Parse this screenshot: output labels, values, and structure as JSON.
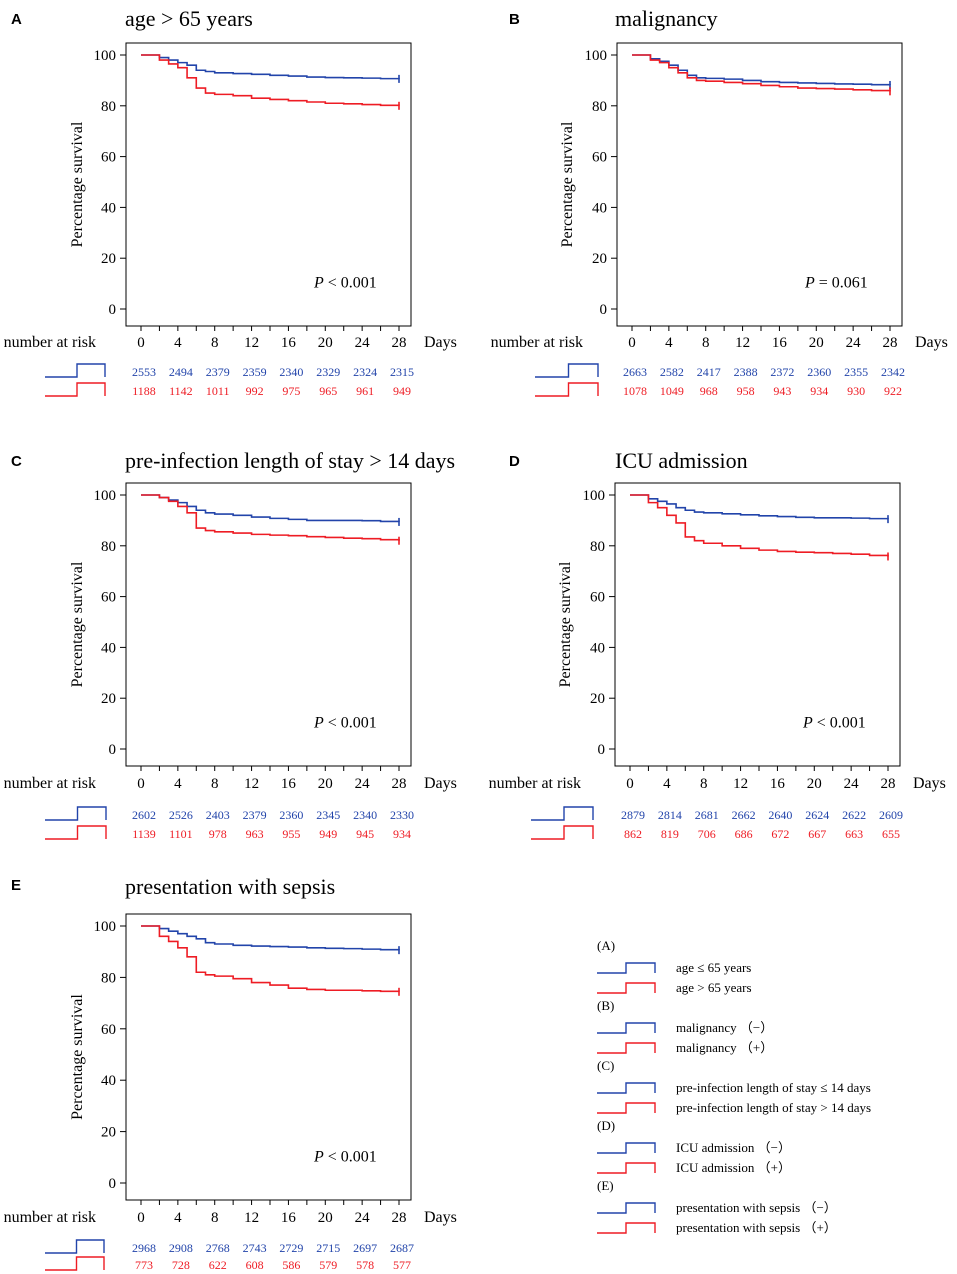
{
  "colors": {
    "minus": "#2244aa",
    "plus": "#ee1c24",
    "axis": "#000000"
  },
  "number_at_risk_label": "number at risk",
  "days_label": "Days",
  "chart_data": [
    {
      "id": "A",
      "type": "line",
      "title": "age > 65 years",
      "xlabel": "Days",
      "ylabel": "Percentage survival",
      "xlim": [
        0,
        28
      ],
      "ylim": [
        0,
        100
      ],
      "x_ticks": [
        0,
        4,
        8,
        12,
        16,
        20,
        24,
        28
      ],
      "y_ticks": [
        0,
        20,
        40,
        60,
        80,
        100
      ],
      "p_value": {
        "label": "P",
        "text": " < 0.001"
      },
      "series": [
        {
          "name": "age ≤ 65 years",
          "group": "minus",
          "x": [
            0,
            2,
            3,
            4,
            5,
            6,
            7,
            8,
            10,
            12,
            14,
            16,
            18,
            20,
            22,
            24,
            26,
            28
          ],
          "y": [
            100,
            99,
            98,
            97,
            96,
            94,
            93.5,
            93,
            92.7,
            92.4,
            92,
            91.7,
            91.3,
            91.1,
            91,
            90.9,
            90.7,
            90.6
          ]
        },
        {
          "name": "age > 65 years",
          "group": "plus",
          "x": [
            0,
            2,
            3,
            4,
            5,
            6,
            7,
            8,
            10,
            12,
            14,
            16,
            18,
            20,
            22,
            24,
            26,
            28
          ],
          "y": [
            100,
            98,
            96.5,
            95,
            91,
            87,
            85,
            84.5,
            84,
            83,
            82.5,
            82,
            81.5,
            81,
            80.8,
            80.5,
            80.2,
            80
          ]
        }
      ],
      "risk": {
        "minus": [
          2553,
          2494,
          2379,
          2359,
          2340,
          2329,
          2324,
          2315
        ],
        "plus": [
          1188,
          1142,
          1011,
          992,
          975,
          965,
          961,
          949
        ]
      }
    },
    {
      "id": "B",
      "type": "line",
      "title": "malignancy",
      "xlabel": "Days",
      "ylabel": "Percentage survival",
      "xlim": [
        0,
        28
      ],
      "ylim": [
        0,
        100
      ],
      "x_ticks": [
        0,
        4,
        8,
        12,
        16,
        20,
        24,
        28
      ],
      "y_ticks": [
        0,
        20,
        40,
        60,
        80,
        100
      ],
      "p_value": {
        "label": "P",
        "text": " = 0.061"
      },
      "series": [
        {
          "name": "malignancy (−)",
          "group": "minus",
          "x": [
            0,
            2,
            3,
            4,
            5,
            6,
            7,
            8,
            10,
            12,
            14,
            16,
            18,
            20,
            22,
            24,
            26,
            28
          ],
          "y": [
            100,
            98.5,
            97.5,
            96,
            94,
            92,
            91,
            90.8,
            90.5,
            90,
            89.5,
            89.2,
            89,
            88.8,
            88.6,
            88.5,
            88.3,
            88.2
          ]
        },
        {
          "name": "malignancy (+)",
          "group": "plus",
          "x": [
            0,
            2,
            3,
            4,
            5,
            6,
            7,
            8,
            10,
            12,
            14,
            16,
            18,
            20,
            22,
            24,
            26,
            28
          ],
          "y": [
            100,
            98,
            97,
            95,
            93,
            91,
            90,
            89.7,
            89.2,
            88.7,
            88,
            87.5,
            87,
            86.8,
            86.6,
            86.3,
            86,
            85.7
          ]
        }
      ],
      "risk": {
        "minus": [
          2663,
          2582,
          2417,
          2388,
          2372,
          2360,
          2355,
          2342
        ],
        "plus": [
          1078,
          1049,
          968,
          958,
          943,
          934,
          930,
          922
        ]
      }
    },
    {
      "id": "C",
      "type": "line",
      "title": "pre-infection length of stay > 14 days",
      "xlabel": "Days",
      "ylabel": "Percentage survival",
      "xlim": [
        0,
        28
      ],
      "ylim": [
        0,
        100
      ],
      "x_ticks": [
        0,
        4,
        8,
        12,
        16,
        20,
        24,
        28
      ],
      "y_ticks": [
        0,
        20,
        40,
        60,
        80,
        100
      ],
      "p_value": {
        "label": "P",
        "text": " < 0.001"
      },
      "series": [
        {
          "name": "pre-infection length of stay ≤ 14 days",
          "group": "minus",
          "x": [
            0,
            2,
            3,
            4,
            5,
            6,
            7,
            8,
            10,
            12,
            14,
            16,
            18,
            20,
            22,
            24,
            26,
            28
          ],
          "y": [
            100,
            99,
            98,
            97,
            95.5,
            94,
            93,
            92.5,
            92,
            91.3,
            90.8,
            90.4,
            90,
            90,
            90,
            89.9,
            89.6,
            89.4
          ]
        },
        {
          "name": "pre-infection length of stay > 14 days",
          "group": "plus",
          "x": [
            0,
            2,
            3,
            4,
            5,
            6,
            7,
            8,
            10,
            12,
            14,
            16,
            18,
            20,
            22,
            24,
            26,
            28
          ],
          "y": [
            100,
            99,
            97.5,
            95.5,
            93,
            87,
            86,
            85.5,
            85,
            84.5,
            84.2,
            84,
            83.6,
            83.3,
            83,
            82.8,
            82.4,
            82
          ]
        }
      ],
      "risk": {
        "minus": [
          2602,
          2526,
          2403,
          2379,
          2360,
          2345,
          2340,
          2330
        ],
        "plus": [
          1139,
          1101,
          978,
          963,
          955,
          949,
          945,
          934
        ]
      }
    },
    {
      "id": "D",
      "type": "line",
      "title": "ICU admission",
      "xlabel": "Days",
      "ylabel": "Percentage survival",
      "xlim": [
        0,
        28
      ],
      "ylim": [
        0,
        100
      ],
      "x_ticks": [
        0,
        4,
        8,
        12,
        16,
        20,
        24,
        28
      ],
      "y_ticks": [
        0,
        20,
        40,
        60,
        80,
        100
      ],
      "p_value": {
        "label": "P",
        "text": " < 0.001"
      },
      "series": [
        {
          "name": "ICU admission (−)",
          "group": "minus",
          "x": [
            0,
            2,
            3,
            4,
            5,
            6,
            7,
            8,
            10,
            12,
            14,
            16,
            18,
            20,
            22,
            24,
            26,
            28
          ],
          "y": [
            100,
            98.5,
            97.5,
            96.5,
            95,
            94,
            93.3,
            93,
            92.6,
            92.2,
            91.8,
            91.5,
            91.2,
            91,
            91,
            90.9,
            90.7,
            90.5
          ]
        },
        {
          "name": "ICU admission (+)",
          "group": "plus",
          "x": [
            0,
            2,
            3,
            4,
            5,
            6,
            7,
            8,
            10,
            12,
            14,
            16,
            18,
            20,
            22,
            24,
            26,
            28
          ],
          "y": [
            100,
            97,
            95,
            92,
            89,
            83.5,
            82,
            81,
            80,
            79,
            78.3,
            77.8,
            77.5,
            77.3,
            77,
            76.7,
            76.2,
            75.8
          ]
        }
      ],
      "risk": {
        "minus": [
          2879,
          2814,
          2681,
          2662,
          2640,
          2624,
          2622,
          2609
        ],
        "plus": [
          862,
          819,
          706,
          686,
          672,
          667,
          663,
          655
        ]
      }
    },
    {
      "id": "E",
      "type": "line",
      "title": "presentation with sepsis",
      "xlabel": "Days",
      "ylabel": "Percentage survival",
      "xlim": [
        0,
        28
      ],
      "ylim": [
        0,
        100
      ],
      "x_ticks": [
        0,
        4,
        8,
        12,
        16,
        20,
        24,
        28
      ],
      "y_ticks": [
        0,
        20,
        40,
        60,
        80,
        100
      ],
      "p_value": {
        "label": "P",
        "text": " < 0.001"
      },
      "series": [
        {
          "name": "presentation with sepsis (−)",
          "group": "minus",
          "x": [
            0,
            2,
            3,
            4,
            5,
            6,
            7,
            8,
            10,
            12,
            14,
            16,
            18,
            20,
            22,
            24,
            26,
            28
          ],
          "y": [
            100,
            99,
            98,
            97,
            96,
            95,
            93.5,
            93,
            92.5,
            92.2,
            92,
            91.8,
            91.5,
            91.3,
            91.2,
            91,
            90.8,
            90.6
          ]
        },
        {
          "name": "presentation with sepsis (+)",
          "group": "plus",
          "x": [
            0,
            2,
            3,
            4,
            5,
            6,
            7,
            8,
            10,
            12,
            14,
            16,
            18,
            20,
            22,
            24,
            26,
            28
          ],
          "y": [
            100,
            96,
            94,
            91.5,
            88,
            82,
            81,
            80.5,
            79.5,
            78,
            77,
            75.8,
            75.3,
            75,
            75,
            74.8,
            74.6,
            74.4
          ]
        }
      ],
      "risk": {
        "minus": [
          2968,
          2908,
          2768,
          2743,
          2729,
          2715,
          2697,
          2687
        ],
        "plus": [
          773,
          728,
          622,
          608,
          586,
          579,
          578,
          577
        ]
      }
    }
  ],
  "legend": {
    "groups": [
      {
        "head": "(A)",
        "minus": "age ≤ 65 years",
        "plus": "age > 65 years"
      },
      {
        "head": "(B)",
        "minus": "malignancy （−）",
        "plus": "malignancy （+）"
      },
      {
        "head": "(C)",
        "minus": "pre-infection length of stay ≤ 14 days",
        "plus": "pre-infection length of stay > 14 days"
      },
      {
        "head": "(D)",
        "minus": "ICU admission （−）",
        "plus": "ICU admission （+）"
      },
      {
        "head": "(E)",
        "minus": "presentation with sepsis （−）",
        "plus": "presentation with sepsis （+）"
      }
    ]
  }
}
